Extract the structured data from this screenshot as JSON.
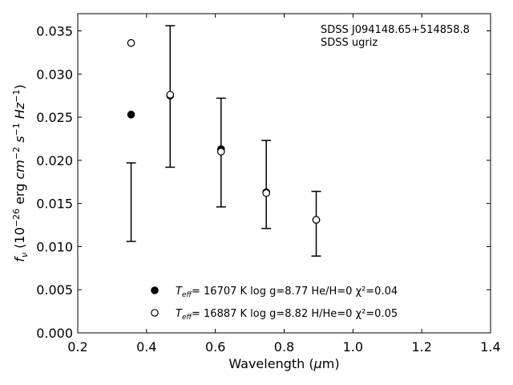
{
  "chart_data": {
    "type": "scatter",
    "xlabel": "Wavelength (μm)",
    "ylabel": "f_ν (10^-26 erg cm^-2 s^-1 Hz^-1)",
    "xlim": [
      0.2,
      1.4
    ],
    "ylim": [
      0.0,
      0.037
    ],
    "x_ticks": [
      "0.2",
      "0.4",
      "0.6",
      "0.8",
      "1.0",
      "1.2",
      "1.4"
    ],
    "y_ticks": [
      "0.000",
      "0.005",
      "0.010",
      "0.015",
      "0.020",
      "0.025",
      "0.030",
      "0.035"
    ],
    "grid": false,
    "annotations": [
      "SDSS J094148.65+514858.8",
      "SDSS ugriz"
    ],
    "observed": {
      "x": [
        0.3551,
        0.4686,
        0.6166,
        0.748,
        0.8932
      ],
      "y": [
        0.0151,
        0.0274,
        0.0209,
        0.0172,
        0.0127
      ],
      "yerr_low": [
        0.0106,
        0.0192,
        0.0146,
        0.0121,
        0.0089
      ],
      "yerr_high": [
        0.0197,
        0.0356,
        0.0272,
        0.0223,
        0.0164
      ]
    },
    "series": [
      {
        "marker": "filled-circle",
        "x": [
          0.3551,
          0.4686,
          0.6166,
          0.748,
          0.8932
        ],
        "y": [
          0.0253,
          0.0275,
          0.0213,
          0.0163,
          0.0131
        ],
        "label_text": "= 16707 K  log g=8.77  He/H=0  χ²=0.04"
      },
      {
        "marker": "open-circle",
        "x": [
          0.3551,
          0.4686,
          0.6166,
          0.748,
          0.8932
        ],
        "y": [
          0.0336,
          0.0276,
          0.021,
          0.0162,
          0.0131
        ],
        "label_text": "= 16887 K  log g=8.82  H/He=0  χ²=0.05"
      }
    ],
    "legend_symbol": "T_eff",
    "legend_position": "lower-center"
  }
}
